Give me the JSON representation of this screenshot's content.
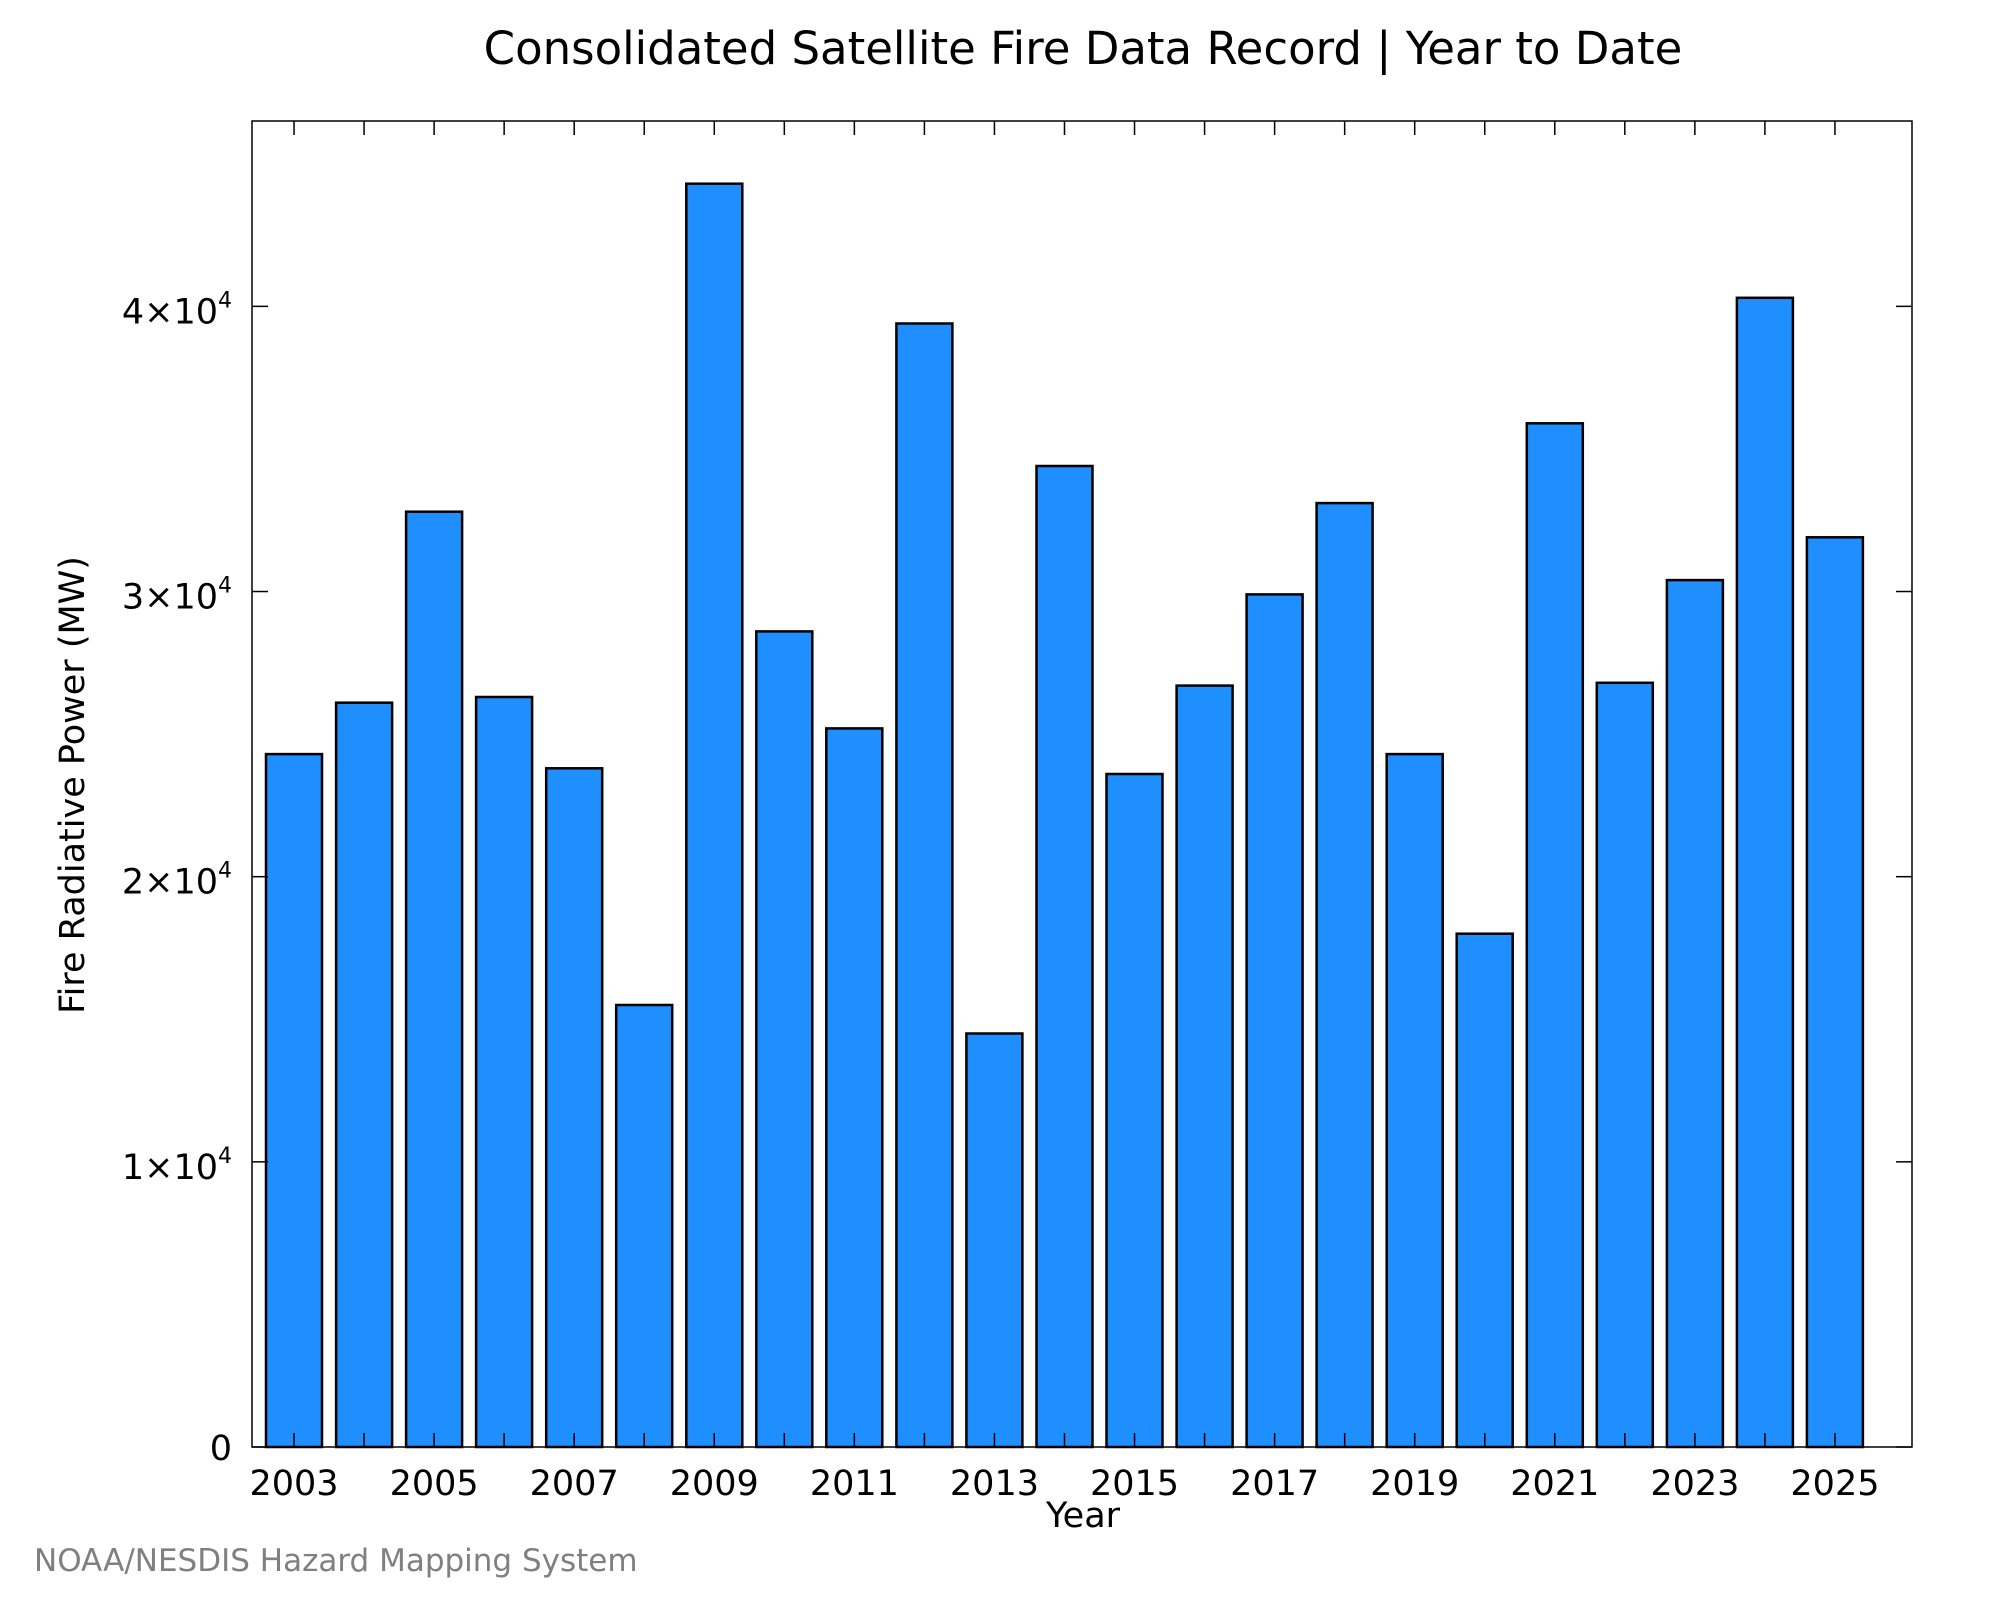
{
  "credit": "NOAA/NESDIS Hazard Mapping System",
  "chart_data": {
    "type": "bar",
    "title": "Consolidated Satellite Fire Data Record | Year to Date",
    "xlabel": "Year",
    "ylabel": "Fire Radiative Power (MW)",
    "ylim": [
      0,
      46500
    ],
    "grid": false,
    "bar_color": "#1f8fff",
    "categories": [
      "2003",
      "2004",
      "2005",
      "2006",
      "2007",
      "2008",
      "2009",
      "2010",
      "2011",
      "2012",
      "2013",
      "2014",
      "2015",
      "2016",
      "2017",
      "2018",
      "2019",
      "2020",
      "2021",
      "2022",
      "2023",
      "2024",
      "2025"
    ],
    "values": [
      24300,
      26100,
      32800,
      26300,
      23800,
      15500,
      44300,
      28600,
      25200,
      39400,
      14500,
      34400,
      23600,
      26700,
      29900,
      33100,
      24300,
      18000,
      35900,
      26800,
      30400,
      40300,
      31900
    ],
    "xtick_labels": [
      "2003",
      "2005",
      "2007",
      "2009",
      "2011",
      "2013",
      "2015",
      "2017",
      "2019",
      "2021",
      "2023",
      "2025"
    ],
    "yticks": [
      {
        "value": 0,
        "label": "0"
      },
      {
        "value": 10000,
        "base": "1×10",
        "exp": "4"
      },
      {
        "value": 20000,
        "base": "2×10",
        "exp": "4"
      },
      {
        "value": 30000,
        "base": "3×10",
        "exp": "4"
      },
      {
        "value": 40000,
        "base": "4×10",
        "exp": "4"
      }
    ]
  }
}
